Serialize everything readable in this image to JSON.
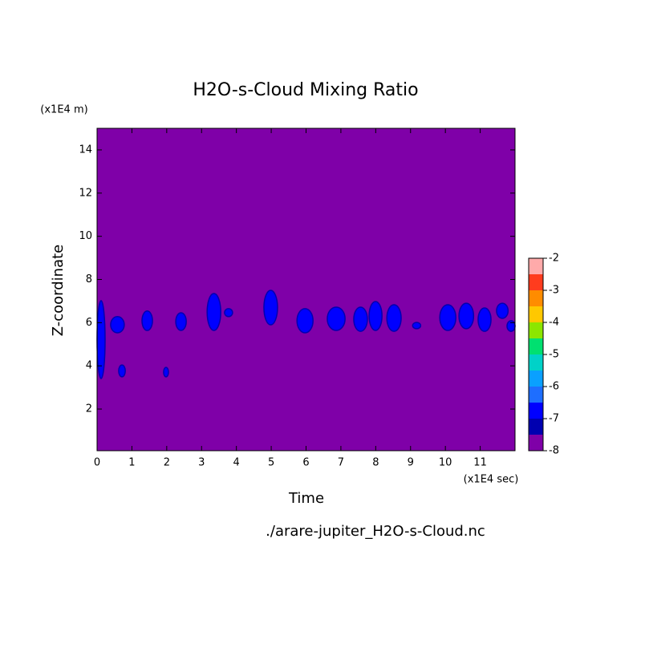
{
  "chart_data": {
    "type": "contour",
    "title": "H2O-s-Cloud Mixing Ratio",
    "x_label": "Time",
    "x_unit": "(x1E4 sec)",
    "y_label": "Z-coordinate",
    "y_unit": "(x1E4 m)",
    "source": "./arare-jupiter_H2O-s-Cloud.nc",
    "xlim": [
      0,
      12
    ],
    "xticks": [
      0,
      1,
      2,
      3,
      4,
      5,
      6,
      7,
      8,
      9,
      10,
      11
    ],
    "ylim": [
      0.07,
      15
    ],
    "yticks": [
      2,
      4,
      6,
      8,
      10,
      12,
      14
    ],
    "levels": [
      -8,
      -7.5,
      -7,
      -6.5,
      -6,
      -5.5,
      -5,
      -4.5,
      -4,
      -3.5,
      -3,
      -2.5,
      -2
    ],
    "colors": [
      "#7f00a8",
      "#0000b0",
      "#0000ff",
      "#1e6eff",
      "#0aa0ff",
      "#00d2c8",
      "#00e070",
      "#8ce600",
      "#ffc800",
      "#ff8c00",
      "#ff3c1e",
      "#ffaaaa"
    ],
    "colorbar_ticks": [
      -8,
      -7,
      -6,
      -5,
      -4,
      -3,
      -2
    ],
    "background_level": -8,
    "regions": [
      {
        "x": [
          0,
          0.23
        ],
        "z": [
          3.41,
          7.02
        ],
        "level": -7
      },
      {
        "x": [
          0.39,
          0.78
        ],
        "z": [
          5.53,
          6.28
        ],
        "level": -7
      },
      {
        "x": [
          1.29,
          1.59
        ],
        "z": [
          5.64,
          6.54
        ],
        "level": -7
      },
      {
        "x": [
          2.26,
          2.56
        ],
        "z": [
          5.64,
          6.46
        ],
        "level": -7
      },
      {
        "x": [
          3.16,
          3.55
        ],
        "z": [
          5.64,
          7.35
        ],
        "level": -7
      },
      {
        "x": [
          3.66,
          3.89
        ],
        "z": [
          6.28,
          6.65
        ],
        "level": -7
      },
      {
        "x": [
          4.79,
          5.18
        ],
        "z": [
          5.9,
          7.5
        ],
        "level": -7
      },
      {
        "x": [
          5.74,
          6.2
        ],
        "z": [
          5.53,
          6.65
        ],
        "level": -7
      },
      {
        "x": [
          6.61,
          7.12
        ],
        "z": [
          5.64,
          6.72
        ],
        "level": -7
      },
      {
        "x": [
          7.37,
          7.76
        ],
        "z": [
          5.6,
          6.72
        ],
        "level": -7
      },
      {
        "x": [
          7.81,
          8.18
        ],
        "z": [
          5.64,
          6.98
        ],
        "level": -7
      },
      {
        "x": [
          8.32,
          8.73
        ],
        "z": [
          5.6,
          6.83
        ],
        "level": -7
      },
      {
        "x": [
          9.06,
          9.29
        ],
        "z": [
          5.72,
          6.01
        ],
        "level": -7
      },
      {
        "x": [
          9.84,
          10.3
        ],
        "z": [
          5.64,
          6.83
        ],
        "level": -7
      },
      {
        "x": [
          10.39,
          10.81
        ],
        "z": [
          5.72,
          6.9
        ],
        "level": -7
      },
      {
        "x": [
          10.94,
          11.31
        ],
        "z": [
          5.6,
          6.68
        ],
        "level": -7
      },
      {
        "x": [
          11.47,
          11.8
        ],
        "z": [
          6.2,
          6.9
        ],
        "level": -7
      },
      {
        "x": [
          11.77,
          12
        ],
        "z": [
          5.6,
          6.09
        ],
        "level": -7
      },
      {
        "x": [
          0.62,
          0.81
        ],
        "z": [
          3.49,
          4.04
        ],
        "level": -7
      },
      {
        "x": [
          1.91,
          2.05
        ],
        "z": [
          3.49,
          3.93
        ],
        "level": -7
      }
    ]
  }
}
